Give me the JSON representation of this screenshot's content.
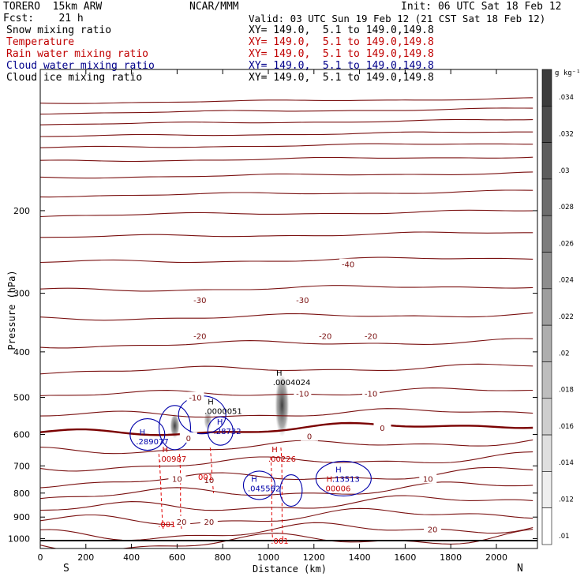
{
  "header": {
    "model": "TORERO  15km ARW",
    "forecast": "Fcst:    21 h",
    "center": "NCAR/MMM",
    "init": "Init: 06 UTC Sat 18 Feb 12",
    "valid": "Valid: 03 UTC Sun 19 Feb 12 (21 CST Sat 18 Feb 12)"
  },
  "legend": [
    {
      "label": "Snow mixing ratio",
      "xy": "XY= 149.0,  5.1 to 149.0,149.8",
      "color": "#000000"
    },
    {
      "label": "Temperature",
      "xy": "XY= 149.0,  5.1 to 149.0,149.8",
      "color": "#c00000"
    },
    {
      "label": "Rain water mixing ratio",
      "xy": "XY= 149.0,  5.1 to 149.0,149.8",
      "color": "#c00000"
    },
    {
      "label": "Cloud water mixing ratio",
      "xy": "XY= 149.0,  5.1 to 149.0,149.8",
      "color": "#00008b"
    },
    {
      "label": "Cloud ice mixing ratio",
      "xy": "XY= 149.0,  5.1 to 149.0,149.8",
      "color": "#000000"
    }
  ],
  "colors": {
    "temperature": "#7a1010",
    "zero_isotherm": "#7a0000",
    "rain": "#e00000",
    "cloud_water": "#0000aa",
    "shade": "#555555",
    "hilo": "#0000aa"
  },
  "chart_data": {
    "type": "line",
    "xlabel": "Distance (km)",
    "ylabel": "Pressure (hPa)",
    "xlim": [
      0,
      2180
    ],
    "ylim_hpa": [
      100,
      1050
    ],
    "xticks": [
      "0",
      "200",
      "400",
      "600",
      "800",
      "1000",
      "1200",
      "1400",
      "1600",
      "1800",
      "2000"
    ],
    "xtick_values": [
      0,
      200,
      400,
      600,
      800,
      1000,
      1200,
      1400,
      1600,
      1800,
      2000
    ],
    "yticks": [
      "200",
      "300",
      "400",
      "500",
      "600",
      "700",
      "800",
      "900",
      "1000"
    ],
    "ytick_values": [
      200,
      300,
      400,
      500,
      600,
      700,
      800,
      900,
      1000
    ],
    "orientation": {
      "left": "S",
      "right": "N"
    },
    "isotherm_labels": [
      {
        "text": "-40",
        "x": 1350,
        "p": 260
      },
      {
        "text": "-30",
        "x": 700,
        "p": 310
      },
      {
        "text": "-30",
        "x": 1150,
        "p": 310
      },
      {
        "text": "-20",
        "x": 700,
        "p": 370
      },
      {
        "text": "-20",
        "x": 1250,
        "p": 370
      },
      {
        "text": "-20",
        "x": 1450,
        "p": 370
      },
      {
        "text": "-10",
        "x": 680,
        "p": 500
      },
      {
        "text": "-10",
        "x": 1150,
        "p": 490
      },
      {
        "text": "-10",
        "x": 1450,
        "p": 490
      },
      {
        "text": "0",
        "x": 650,
        "p": 610
      },
      {
        "text": "0",
        "x": 1180,
        "p": 605
      },
      {
        "text": "0",
        "x": 1500,
        "p": 580
      },
      {
        "text": "10",
        "x": 600,
        "p": 745
      },
      {
        "text": "10",
        "x": 740,
        "p": 750
      },
      {
        "text": "10",
        "x": 1700,
        "p": 745
      },
      {
        "text": "20",
        "x": 620,
        "p": 920
      },
      {
        "text": "20",
        "x": 740,
        "p": 920
      },
      {
        "text": "20",
        "x": 1720,
        "p": 955
      }
    ],
    "annotations": [
      {
        "mark": "H",
        "value": ".0004024",
        "x": 1020,
        "p": 460,
        "color": "#000000"
      },
      {
        "mark": "H",
        "value": ".0000051",
        "x": 720,
        "p": 530,
        "color": "#000000"
      },
      {
        "mark": "H",
        "value": ".28732",
        "x": 760,
        "p": 585,
        "color": "#0000aa"
      },
      {
        "mark": "H",
        "value": ".289077",
        "x": 420,
        "p": 615,
        "color": "#0000aa"
      },
      {
        "mark": "H",
        "value": ".00987",
        "x": 520,
        "p": 670,
        "color": "#c00000"
      },
      {
        "mark": "H",
        "value": ".00226",
        "x": 1000,
        "p": 670,
        "color": "#c00000"
      },
      {
        "mark": "H",
        "value": ".13513",
        "x": 1280,
        "p": 740,
        "color": "#0000aa"
      },
      {
        "mark": "H",
        "value": ".045562",
        "x": 910,
        "p": 775,
        "color": "#0000aa"
      },
      {
        "mark": "H",
        "value": ".00006",
        "x": 1240,
        "p": 775,
        "color": "#c00000"
      }
    ],
    "rain_labels": [
      {
        "text": "001",
        "x": 725,
        "p": 738
      },
      {
        "text": ".001",
        "x": 555,
        "p": 932
      },
      {
        "text": ".001",
        "x": 1050,
        "p": 1010
      }
    ]
  },
  "colorbar": {
    "unit": "g kg⁻¹",
    "labels": [
      ".034",
      ".032",
      ".03",
      ".028",
      ".026",
      ".024",
      ".022",
      ".02",
      ".018",
      ".016",
      ".014",
      ".012",
      ".01"
    ]
  }
}
